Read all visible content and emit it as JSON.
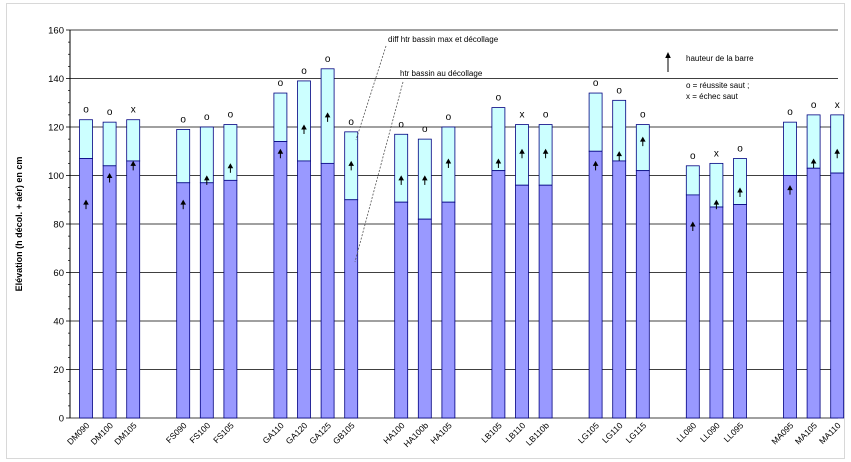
{
  "chart_data": {
    "type": "bar",
    "ylabel": "Elévation (h décol. + aér) en cm",
    "ylim": [
      0,
      160
    ],
    "yticks": [
      0,
      20,
      40,
      60,
      80,
      100,
      120,
      140,
      160
    ],
    "grid": true,
    "colors": {
      "lower": "#9999ff",
      "upper": "#ccffff",
      "edge": "#000080"
    },
    "groups": [
      {
        "bars": [
          {
            "label": "DM090",
            "decollage": 107,
            "total": 123,
            "bar_height": 89,
            "result": "o"
          },
          {
            "label": "DM100",
            "decollage": 104,
            "total": 122,
            "bar_height": 100,
            "result": "o"
          },
          {
            "label": "DM105",
            "decollage": 106,
            "total": 123,
            "bar_height": 105,
            "result": "x"
          }
        ]
      },
      {
        "bars": [
          {
            "label": "FS090",
            "decollage": 97,
            "total": 119,
            "bar_height": 89,
            "result": "o"
          },
          {
            "label": "FS100",
            "decollage": 97,
            "total": 120,
            "bar_height": 99,
            "result": "o"
          },
          {
            "label": "FS105",
            "decollage": 98,
            "total": 121,
            "bar_height": 104,
            "result": "o"
          }
        ]
      },
      {
        "bars": [
          {
            "label": "GA110",
            "decollage": 114,
            "total": 134,
            "bar_height": 110,
            "result": "o"
          },
          {
            "label": "GA120",
            "decollage": 106,
            "total": 139,
            "bar_height": 120,
            "result": "o"
          },
          {
            "label": "GA125",
            "decollage": 105,
            "total": 144,
            "bar_height": 125,
            "result": "o"
          },
          {
            "label": "GB105",
            "decollage": 90,
            "total": 118,
            "bar_height": 105,
            "result": "o"
          }
        ]
      },
      {
        "bars": [
          {
            "label": "HA100",
            "decollage": 89,
            "total": 117,
            "bar_height": 99,
            "result": "o"
          },
          {
            "label": "HA100b",
            "decollage": 82,
            "total": 115,
            "bar_height": 99,
            "result": "o"
          },
          {
            "label": "HA105",
            "decollage": 89,
            "total": 120,
            "bar_height": 106,
            "result": "o"
          }
        ]
      },
      {
        "bars": [
          {
            "label": "LB105",
            "decollage": 102,
            "total": 128,
            "bar_height": 106,
            "result": "o"
          },
          {
            "label": "LB110",
            "decollage": 96,
            "total": 121,
            "bar_height": 110,
            "result": "x"
          },
          {
            "label": "LB110b",
            "decollage": 96,
            "total": 121,
            "bar_height": 110,
            "result": "o"
          }
        ]
      },
      {
        "bars": [
          {
            "label": "LG105",
            "decollage": 110,
            "total": 134,
            "bar_height": 105,
            "result": "o"
          },
          {
            "label": "LG110",
            "decollage": 106,
            "total": 131,
            "bar_height": 109,
            "result": "o"
          },
          {
            "label": "LG115",
            "decollage": 102,
            "total": 121,
            "bar_height": 115,
            "result": "o"
          }
        ]
      },
      {
        "bars": [
          {
            "label": "LL080",
            "decollage": 92,
            "total": 104,
            "bar_height": 80,
            "result": "o"
          },
          {
            "label": "LL090",
            "decollage": 87,
            "total": 105,
            "bar_height": 89,
            "result": "x"
          },
          {
            "label": "LL095",
            "decollage": 88,
            "total": 107,
            "bar_height": 94,
            "result": "o"
          }
        ]
      },
      {
        "bars": [
          {
            "label": "MA095",
            "decollage": 100,
            "total": 122,
            "bar_height": 95,
            "result": "o"
          },
          {
            "label": "MA105",
            "decollage": 103,
            "total": 125,
            "bar_height": 106,
            "result": "o"
          },
          {
            "label": "MA110",
            "decollage": 101,
            "total": 125,
            "bar_height": 110,
            "result": "x"
          }
        ]
      }
    ],
    "annotations": {
      "diff": "diff htr bassin max et décollage",
      "htr": "htr  bassin au décollage",
      "hauteur": "hauteur de la barre",
      "legend_o": "o = réussite saut ;",
      "legend_x": "x = échec saut"
    }
  }
}
